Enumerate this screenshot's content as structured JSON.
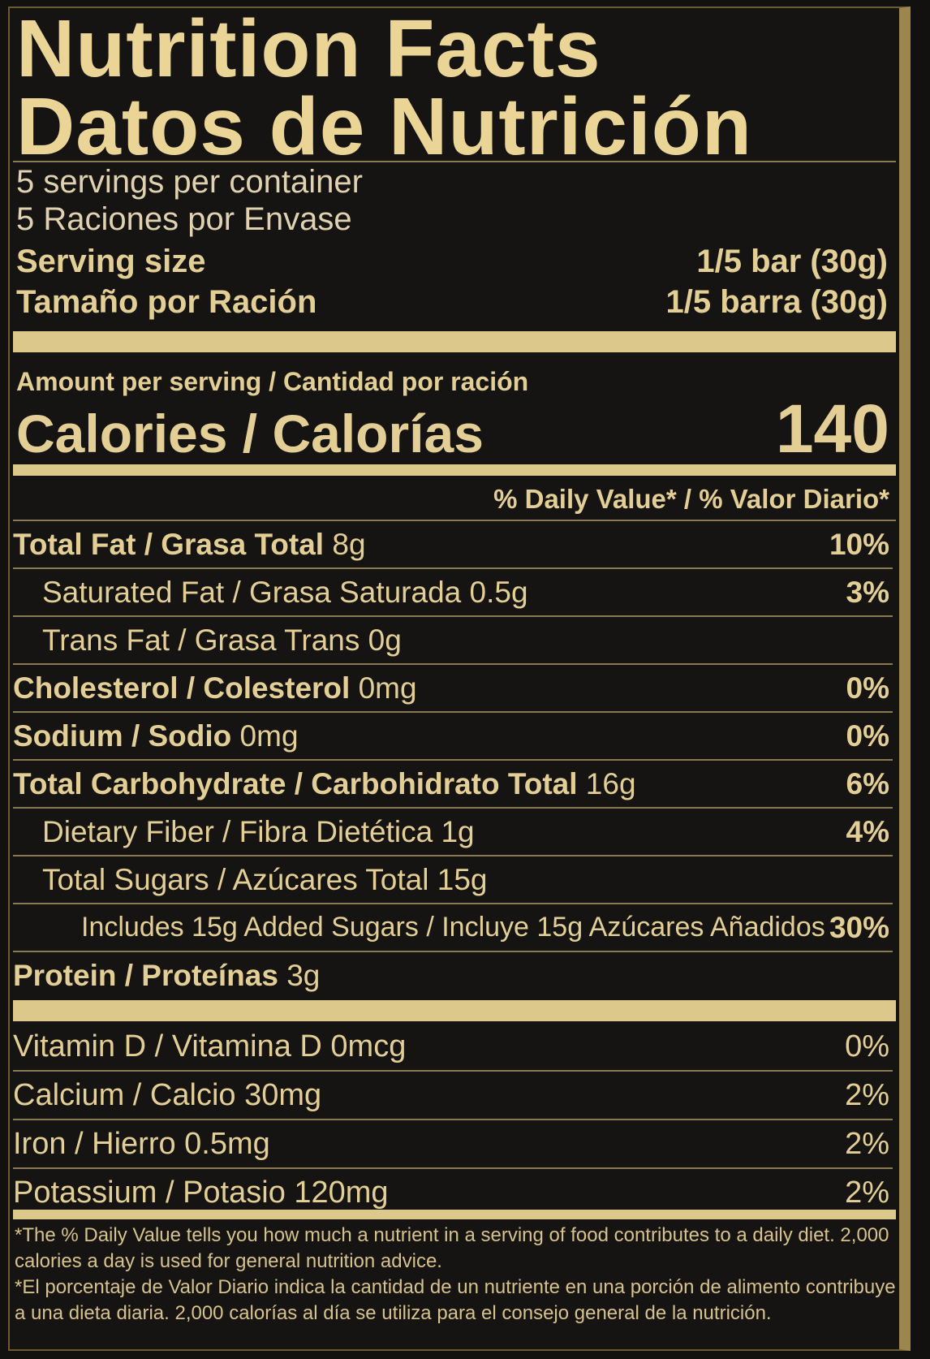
{
  "title_en": "Nutrition Facts",
  "title_es": "Datos de Nutrición",
  "servings_en": "5 servings per container",
  "servings_es": "5 Raciones por Envase",
  "serving_size_label_en": "Serving size",
  "serving_size_value_en": "1/5 bar (30g)",
  "serving_size_label_es": "Tamaño por Ración",
  "serving_size_value_es": "1/5 barra (30g)",
  "amount_per_serving": "Amount per serving / Cantidad por ración",
  "calories_label": "Calories / Calorías",
  "calories_value": "140",
  "dv_header": "% Daily Value* / % Valor Diario*",
  "nutrients": [
    {
      "label": "Total Fat / Grasa Total",
      "amount": "8g",
      "pct": "10%"
    },
    {
      "label": "Saturated Fat / Grasa Saturada",
      "amount": "0.5g",
      "pct": "3%"
    },
    {
      "label": "Trans Fat / Grasa Trans",
      "amount": "0g",
      "pct": ""
    },
    {
      "label": "Cholesterol / Colesterol",
      "amount": "0mg",
      "pct": "0%"
    },
    {
      "label": "Sodium / Sodio",
      "amount": "0mg",
      "pct": "0%"
    },
    {
      "label": "Total Carbohydrate / Carbohidrato Total",
      "amount": "16g",
      "pct": "6%"
    },
    {
      "label": "Dietary Fiber / Fibra Dietética",
      "amount": "1g",
      "pct": "4%"
    },
    {
      "label": "Total Sugars / Azúcares Total",
      "amount": "15g",
      "pct": ""
    },
    {
      "label": "Includes 15g Added Sugars / Incluye 15g Azúcares Añadidos",
      "amount": "",
      "pct": "30%"
    },
    {
      "label": "Protein / Proteínas",
      "amount": "3g",
      "pct": ""
    }
  ],
  "vitamins": [
    {
      "label": "Vitamin D / Vitamina D 0mcg",
      "pct": "0%"
    },
    {
      "label": "Calcium / Calcio 30mg",
      "pct": "2%"
    },
    {
      "label": "Iron / Hierro 0.5mg",
      "pct": "2%"
    },
    {
      "label": "Potassium / Potasio 120mg",
      "pct": "2%"
    }
  ],
  "footnote_en": "*The % Daily Value tells you how much a nutrient in a serving of food contributes to a daily diet. 2,000 calories a day is used for general nutrition advice.",
  "footnote_es": "*El porcentaje de Valor Diario indica la cantidad de un nutriente en una porción de alimento contribuye a una dieta diaria. 2,000 calorías al día se utiliza para el consejo general de la nutrición."
}
